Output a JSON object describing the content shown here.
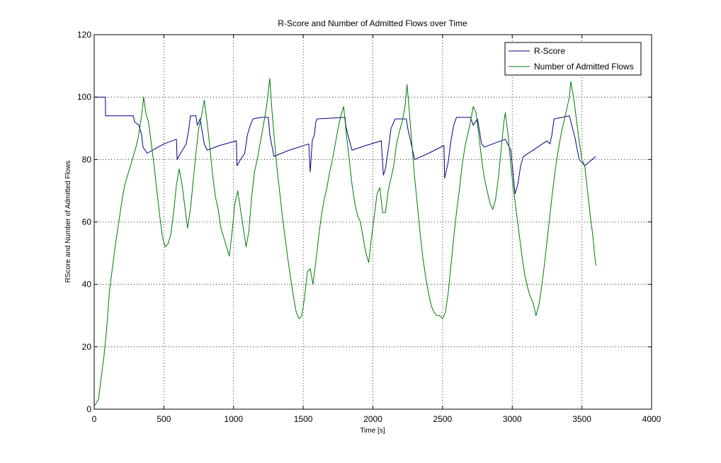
{
  "chart_data": {
    "type": "line",
    "title": "R-Score and Number of Admitted Flows over Time",
    "xlabel": "Time [s]",
    "ylabel": "RScore and Number of Admitted Flows",
    "xlim": [
      0,
      4000
    ],
    "ylim": [
      0,
      120
    ],
    "xticks": [
      "0",
      "500",
      "1000",
      "1500",
      "2000",
      "2500",
      "3000",
      "3500",
      "4000"
    ],
    "yticks": [
      "0",
      "20",
      "40",
      "60",
      "80",
      "100",
      "120"
    ],
    "grid": true,
    "legend_position": "top-right",
    "series": [
      {
        "name": "R-Score",
        "color": "#00008b",
        "points": [
          [
            0,
            100
          ],
          [
            80,
            100
          ],
          [
            82,
            94
          ],
          [
            150,
            94
          ],
          [
            280,
            94
          ],
          [
            290,
            92
          ],
          [
            320,
            91
          ],
          [
            340,
            88
          ],
          [
            350,
            84
          ],
          [
            380,
            82
          ],
          [
            420,
            83
          ],
          [
            500,
            85
          ],
          [
            590,
            86.5
          ],
          [
            595,
            80
          ],
          [
            620,
            82
          ],
          [
            660,
            85
          ],
          [
            680,
            90
          ],
          [
            690,
            94
          ],
          [
            730,
            94
          ],
          [
            740,
            91
          ],
          [
            760,
            93
          ],
          [
            790,
            85
          ],
          [
            810,
            83
          ],
          [
            900,
            84.5
          ],
          [
            1020,
            86
          ],
          [
            1025,
            78
          ],
          [
            1050,
            80
          ],
          [
            1080,
            82
          ],
          [
            1100,
            88
          ],
          [
            1120,
            91
          ],
          [
            1140,
            93
          ],
          [
            1200,
            93.5
          ],
          [
            1250,
            93.5
          ],
          [
            1260,
            88
          ],
          [
            1290,
            81
          ],
          [
            1400,
            83
          ],
          [
            1540,
            85
          ],
          [
            1550,
            76
          ],
          [
            1565,
            86
          ],
          [
            1580,
            88
          ],
          [
            1590,
            92
          ],
          [
            1600,
            93
          ],
          [
            1800,
            93.5
          ],
          [
            1805,
            91
          ],
          [
            1820,
            88
          ],
          [
            1850,
            83
          ],
          [
            1950,
            84.5
          ],
          [
            2060,
            86
          ],
          [
            2075,
            75
          ],
          [
            2090,
            77
          ],
          [
            2110,
            83
          ],
          [
            2130,
            90
          ],
          [
            2160,
            93
          ],
          [
            2240,
            93
          ],
          [
            2250,
            90
          ],
          [
            2300,
            80
          ],
          [
            2400,
            82
          ],
          [
            2510,
            84.5
          ],
          [
            2515,
            74
          ],
          [
            2540,
            79
          ],
          [
            2560,
            86
          ],
          [
            2580,
            91
          ],
          [
            2600,
            93.5
          ],
          [
            2700,
            93.5
          ],
          [
            2720,
            91
          ],
          [
            2750,
            93
          ],
          [
            2780,
            85
          ],
          [
            2800,
            84
          ],
          [
            2950,
            86.5
          ],
          [
            2990,
            83
          ],
          [
            3020,
            69
          ],
          [
            3040,
            72
          ],
          [
            3060,
            78
          ],
          [
            3080,
            81
          ],
          [
            3150,
            83
          ],
          [
            3250,
            86
          ],
          [
            3270,
            85
          ],
          [
            3285,
            88
          ],
          [
            3300,
            93
          ],
          [
            3410,
            94
          ],
          [
            3450,
            87
          ],
          [
            3480,
            80
          ],
          [
            3520,
            78
          ],
          [
            3600,
            81
          ]
        ]
      },
      {
        "name": "Number of Admitted Flows",
        "color": "#007a00",
        "points": [
          [
            0,
            1
          ],
          [
            30,
            3
          ],
          [
            50,
            10
          ],
          [
            70,
            17
          ],
          [
            90,
            26
          ],
          [
            110,
            38
          ],
          [
            130,
            45
          ],
          [
            150,
            52
          ],
          [
            170,
            58
          ],
          [
            180,
            61
          ],
          [
            200,
            67
          ],
          [
            220,
            72
          ],
          [
            240,
            75
          ],
          [
            260,
            78
          ],
          [
            280,
            81
          ],
          [
            300,
            84
          ],
          [
            320,
            88
          ],
          [
            340,
            94
          ],
          [
            355,
            100
          ],
          [
            370,
            95
          ],
          [
            390,
            92
          ],
          [
            410,
            85
          ],
          [
            430,
            78
          ],
          [
            450,
            70
          ],
          [
            470,
            62
          ],
          [
            490,
            55
          ],
          [
            510,
            52
          ],
          [
            530,
            53
          ],
          [
            550,
            56
          ],
          [
            570,
            63
          ],
          [
            590,
            72
          ],
          [
            610,
            77
          ],
          [
            630,
            72
          ],
          [
            650,
            65
          ],
          [
            670,
            58
          ],
          [
            690,
            64
          ],
          [
            710,
            73
          ],
          [
            730,
            82
          ],
          [
            750,
            90
          ],
          [
            770,
            94
          ],
          [
            790,
            99
          ],
          [
            810,
            92
          ],
          [
            830,
            84
          ],
          [
            850,
            75
          ],
          [
            870,
            68
          ],
          [
            890,
            64
          ],
          [
            910,
            58
          ],
          [
            930,
            55
          ],
          [
            950,
            52
          ],
          [
            970,
            49
          ],
          [
            990,
            57
          ],
          [
            1010,
            66
          ],
          [
            1030,
            70
          ],
          [
            1050,
            64
          ],
          [
            1070,
            58
          ],
          [
            1090,
            52
          ],
          [
            1110,
            57
          ],
          [
            1130,
            68
          ],
          [
            1150,
            76
          ],
          [
            1170,
            80
          ],
          [
            1190,
            85
          ],
          [
            1210,
            90
          ],
          [
            1230,
            95
          ],
          [
            1245,
            100
          ],
          [
            1260,
            106
          ],
          [
            1275,
            96
          ],
          [
            1290,
            88
          ],
          [
            1310,
            78
          ],
          [
            1330,
            70
          ],
          [
            1350,
            62
          ],
          [
            1370,
            55
          ],
          [
            1390,
            48
          ],
          [
            1410,
            42
          ],
          [
            1430,
            36
          ],
          [
            1450,
            31
          ],
          [
            1470,
            29
          ],
          [
            1490,
            30
          ],
          [
            1510,
            36
          ],
          [
            1530,
            44
          ],
          [
            1550,
            45
          ],
          [
            1570,
            40
          ],
          [
            1590,
            47
          ],
          [
            1610,
            55
          ],
          [
            1630,
            62
          ],
          [
            1650,
            67
          ],
          [
            1670,
            71
          ],
          [
            1690,
            76
          ],
          [
            1710,
            80
          ],
          [
            1730,
            85
          ],
          [
            1750,
            90
          ],
          [
            1770,
            94
          ],
          [
            1790,
            97
          ],
          [
            1810,
            88
          ],
          [
            1830,
            80
          ],
          [
            1850,
            72
          ],
          [
            1870,
            66
          ],
          [
            1890,
            62
          ],
          [
            1910,
            60
          ],
          [
            1930,
            55
          ],
          [
            1950,
            50
          ],
          [
            1970,
            47
          ],
          [
            1990,
            55
          ],
          [
            2010,
            62
          ],
          [
            2030,
            69
          ],
          [
            2050,
            71
          ],
          [
            2070,
            63
          ],
          [
            2090,
            63
          ],
          [
            2110,
            70
          ],
          [
            2130,
            74
          ],
          [
            2150,
            78
          ],
          [
            2170,
            85
          ],
          [
            2190,
            89
          ],
          [
            2210,
            92
          ],
          [
            2230,
            97
          ],
          [
            2245,
            104
          ],
          [
            2260,
            96
          ],
          [
            2280,
            85
          ],
          [
            2300,
            74
          ],
          [
            2320,
            65
          ],
          [
            2340,
            56
          ],
          [
            2360,
            48
          ],
          [
            2380,
            42
          ],
          [
            2400,
            37
          ],
          [
            2420,
            33
          ],
          [
            2440,
            31
          ],
          [
            2460,
            30
          ],
          [
            2480,
            30
          ],
          [
            2500,
            29
          ],
          [
            2520,
            31
          ],
          [
            2540,
            37
          ],
          [
            2560,
            46
          ],
          [
            2580,
            55
          ],
          [
            2600,
            63
          ],
          [
            2620,
            70
          ],
          [
            2640,
            78
          ],
          [
            2660,
            84
          ],
          [
            2680,
            88
          ],
          [
            2700,
            92
          ],
          [
            2720,
            97
          ],
          [
            2740,
            95
          ],
          [
            2760,
            88
          ],
          [
            2780,
            80
          ],
          [
            2800,
            74
          ],
          [
            2820,
            70
          ],
          [
            2840,
            66
          ],
          [
            2860,
            64
          ],
          [
            2880,
            67
          ],
          [
            2900,
            74
          ],
          [
            2920,
            83
          ],
          [
            2940,
            92
          ],
          [
            2950,
            95
          ],
          [
            2970,
            88
          ],
          [
            2990,
            78
          ],
          [
            3010,
            70
          ],
          [
            3030,
            63
          ],
          [
            3050,
            56
          ],
          [
            3070,
            49
          ],
          [
            3090,
            43
          ],
          [
            3110,
            39
          ],
          [
            3130,
            36
          ],
          [
            3150,
            34
          ],
          [
            3170,
            30
          ],
          [
            3190,
            33
          ],
          [
            3210,
            39
          ],
          [
            3230,
            46
          ],
          [
            3250,
            54
          ],
          [
            3270,
            62
          ],
          [
            3290,
            70
          ],
          [
            3310,
            77
          ],
          [
            3330,
            83
          ],
          [
            3350,
            88
          ],
          [
            3370,
            92
          ],
          [
            3390,
            96
          ],
          [
            3410,
            100
          ],
          [
            3420,
            105
          ],
          [
            3440,
            100
          ],
          [
            3460,
            93
          ],
          [
            3480,
            86
          ],
          [
            3500,
            80
          ],
          [
            3520,
            78
          ],
          [
            3540,
            70
          ],
          [
            3560,
            62
          ],
          [
            3580,
            55
          ],
          [
            3590,
            50
          ],
          [
            3600,
            46
          ]
        ]
      }
    ]
  }
}
